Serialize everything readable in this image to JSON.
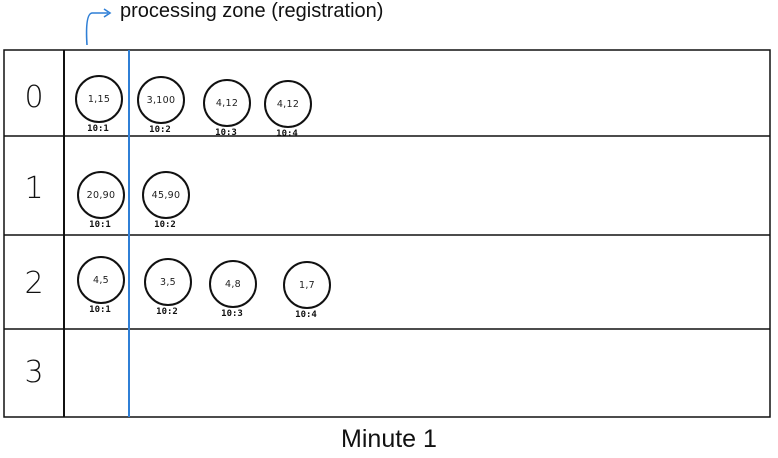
{
  "annotation": {
    "label": "processing zone (registration)"
  },
  "caption": "Minute 1",
  "rows": [
    {
      "label": "0",
      "events": [
        {
          "value": "1,15",
          "time": "10:1"
        },
        {
          "value": "3,100",
          "time": "10:2"
        },
        {
          "value": "4,12",
          "time": "10:3"
        },
        {
          "value": "4,12",
          "time": "10:4"
        }
      ]
    },
    {
      "label": "1",
      "events": [
        {
          "value": "20,90",
          "time": "10:1"
        },
        {
          "value": "45,90",
          "time": "10:2"
        }
      ]
    },
    {
      "label": "2",
      "events": [
        {
          "value": "4,5",
          "time": "10:1"
        },
        {
          "value": "3,5",
          "time": "10:2"
        },
        {
          "value": "4,8",
          "time": "10:3"
        },
        {
          "value": "1,7",
          "time": "10:4"
        }
      ]
    },
    {
      "label": "3",
      "events": []
    }
  ],
  "colors": {
    "processing_line": "#2f7fd6",
    "grid": "#111111"
  }
}
